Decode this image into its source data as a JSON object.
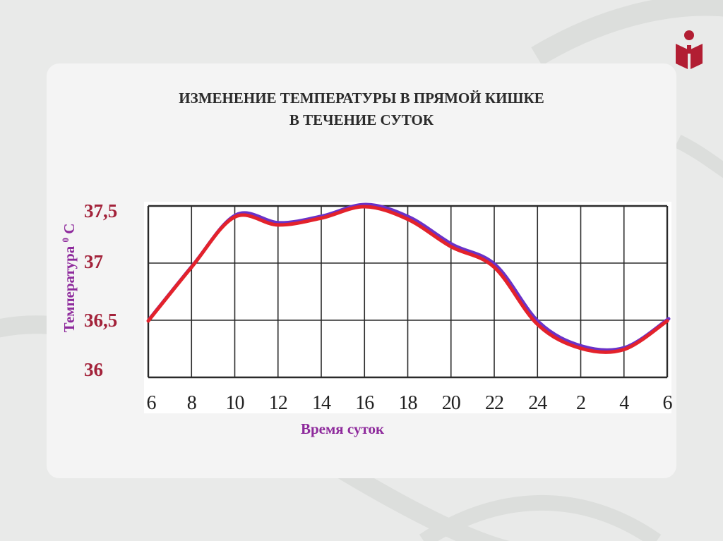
{
  "slide": {
    "title_line1": "ИЗМЕНЕНИЕ ТЕМПЕРАТУРЫ В ПРЯМОЙ КИШКЕ",
    "title_line2": "В ТЕЧЕНИЕ СУТОК",
    "ylabel_main": "Температура ",
    "ylabel_sup": "0",
    "ylabel_unit": " С",
    "xlabel": "Время суток",
    "logo_icon": "book-person-logo-icon"
  },
  "colors": {
    "curve_red": "#e3222b",
    "curve_blue": "#6a32c8",
    "ytick": "#a3223a",
    "axis_title": "#8e2a9c",
    "logo": "#b21e33"
  },
  "chart_data": {
    "type": "line",
    "title": "ИЗМЕНЕНИЕ ТЕМПЕРАТУРЫ В ПРЯМОЙ КИШКЕ В ТЕЧЕНИЕ СУТОК",
    "xlabel": "Время суток",
    "ylabel": "Температура 0 С",
    "x_ticks": [
      "6",
      "8",
      "10",
      "12",
      "14",
      "16",
      "18",
      "20",
      "22",
      "24",
      "2",
      "4",
      "6"
    ],
    "y_ticks": [
      "37,5",
      "37",
      "36,5",
      "36"
    ],
    "ylim": [
      36,
      37.5
    ],
    "grid": true,
    "series": [
      {
        "x": [
          "6",
          "8",
          "10",
          "12",
          "14",
          "16",
          "18",
          "20",
          "22",
          "24",
          "2",
          "4",
          "6"
        ],
        "values": [
          36.5,
          36.97,
          37.41,
          37.34,
          37.4,
          37.5,
          37.39,
          37.15,
          36.97,
          36.47,
          36.26,
          36.25,
          36.5
        ]
      }
    ]
  }
}
